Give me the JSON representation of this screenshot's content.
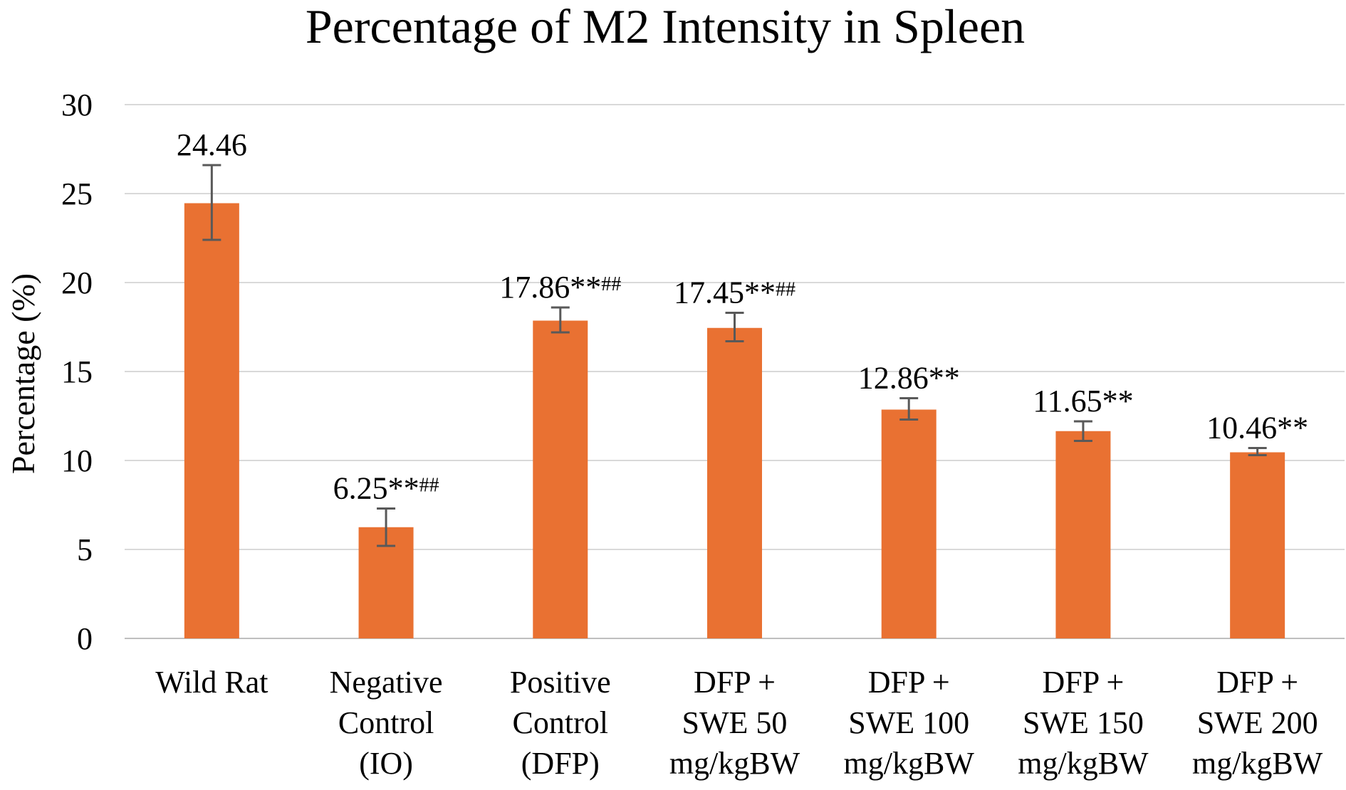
{
  "chart_data": {
    "type": "bar",
    "title": "Percentage of M2 Intensity in Spleen",
    "ylabel": "Percentage (%)",
    "xlabel": "",
    "ylim": [
      0,
      30
    ],
    "yticks": [
      0,
      5,
      10,
      15,
      20,
      25,
      30
    ],
    "grid": true,
    "bar_color": "#E97132",
    "categories": [
      [
        "Wild Rat"
      ],
      [
        "Negative",
        "Control",
        "(IO)"
      ],
      [
        "Positive",
        "Control",
        "(DFP)"
      ],
      [
        "DFP +",
        "SWE 50",
        "mg/kgBW"
      ],
      [
        "DFP +",
        "SWE 100",
        "mg/kgBW"
      ],
      [
        "DFP +",
        "SWE 150",
        "mg/kgBW"
      ],
      [
        "DFP +",
        "SWE 200",
        "mg/kgBW"
      ]
    ],
    "values": [
      24.46,
      6.25,
      17.86,
      17.45,
      12.86,
      11.65,
      10.46
    ],
    "error_bars": [
      [
        22.4,
        26.6
      ],
      [
        5.2,
        7.3
      ],
      [
        17.2,
        18.6
      ],
      [
        16.7,
        18.3
      ],
      [
        12.3,
        13.5
      ],
      [
        11.1,
        12.2
      ],
      [
        10.3,
        10.7
      ]
    ],
    "data_labels": [
      {
        "value": "24.46",
        "sig": ""
      },
      {
        "value": "6.25**",
        "sig": "##"
      },
      {
        "value": "17.86**",
        "sig": "##"
      },
      {
        "value": "17.45**",
        "sig": "##"
      },
      {
        "value": "12.86**",
        "sig": ""
      },
      {
        "value": "11.65**",
        "sig": ""
      },
      {
        "value": "10.46**",
        "sig": ""
      }
    ]
  }
}
